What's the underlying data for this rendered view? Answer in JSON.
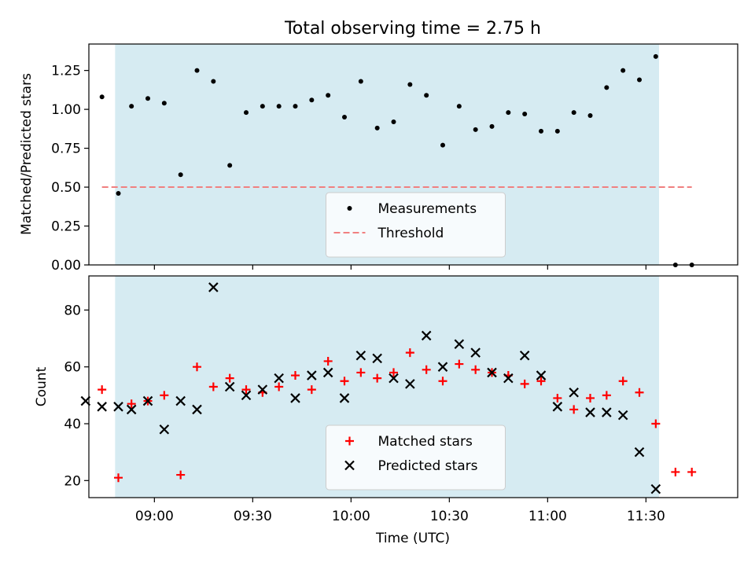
{
  "chart_data": [
    {
      "type": "scatter",
      "title": "Total observing time = 2.75 h",
      "xlabel": "",
      "ylabel": "Matched/Predicted stars",
      "xlim": [
        "08:40",
        "11:58"
      ],
      "ylim": [
        0,
        1.42
      ],
      "grid": false,
      "shaded_interval": [
        "08:48",
        "11:34"
      ],
      "x_ticks": [
        "09:00",
        "09:30",
        "10:00",
        "10:30",
        "11:00",
        "11:30"
      ],
      "y_ticks": [
        "0.00",
        "0.25",
        "0.50",
        "0.75",
        "1.00",
        "1.25"
      ],
      "legend_position": "bottom-center",
      "series": [
        {
          "name": "Measurements",
          "style": "dot",
          "color": "#000000",
          "x": [
            "08:44",
            "08:49",
            "08:53",
            "08:58",
            "09:03",
            "09:08",
            "09:13",
            "09:18",
            "09:23",
            "09:28",
            "09:33",
            "09:38",
            "09:43",
            "09:48",
            "09:53",
            "09:58",
            "10:03",
            "10:08",
            "10:13",
            "10:18",
            "10:23",
            "10:28",
            "10:33",
            "10:38",
            "10:43",
            "10:48",
            "10:53",
            "10:58",
            "11:03",
            "11:08",
            "11:13",
            "11:18",
            "11:23",
            "11:28",
            "11:33",
            "11:39",
            "11:44"
          ],
          "y": [
            1.08,
            0.46,
            1.02,
            1.07,
            1.04,
            0.58,
            1.25,
            1.18,
            0.64,
            0.98,
            1.02,
            1.02,
            1.02,
            1.06,
            1.09,
            0.95,
            1.18,
            0.88,
            0.92,
            1.16,
            1.09,
            0.77,
            1.02,
            0.87,
            0.89,
            0.98,
            0.97,
            0.86,
            0.86,
            0.98,
            0.96,
            1.14,
            1.25,
            1.19,
            1.34,
            0.0,
            0.0
          ]
        },
        {
          "name": "Threshold",
          "style": "dashed",
          "color": "#f08080",
          "x": [
            "08:44",
            "11:44"
          ],
          "y": [
            0.5,
            0.5
          ]
        }
      ]
    },
    {
      "type": "scatter",
      "title": "",
      "xlabel": "Time (UTC)",
      "ylabel": "Count",
      "xlim": [
        "08:40",
        "11:58"
      ],
      "ylim": [
        14,
        92
      ],
      "grid": false,
      "shaded_interval": [
        "08:48",
        "11:34"
      ],
      "x_ticks": [
        "09:00",
        "09:30",
        "10:00",
        "10:30",
        "11:00",
        "11:30"
      ],
      "y_ticks": [
        "20",
        "40",
        "60",
        "80"
      ],
      "legend_position": "bottom-center",
      "series": [
        {
          "name": "Matched stars",
          "marker": "plus",
          "color": "#ff0000",
          "x": [
            "08:44",
            "08:49",
            "08:53",
            "08:58",
            "09:03",
            "09:08",
            "09:13",
            "09:18",
            "09:23",
            "09:28",
            "09:33",
            "09:38",
            "09:43",
            "09:48",
            "09:53",
            "09:58",
            "10:03",
            "10:08",
            "10:13",
            "10:18",
            "10:23",
            "10:28",
            "10:33",
            "10:38",
            "10:43",
            "10:48",
            "10:53",
            "10:58",
            "11:03",
            "11:08",
            "11:13",
            "11:18",
            "11:23",
            "11:28",
            "11:33",
            "11:39",
            "11:44"
          ],
          "y": [
            52,
            21,
            47,
            48,
            50,
            22,
            60,
            53,
            56,
            52,
            51,
            53,
            57,
            52,
            62,
            55,
            58,
            56,
            58,
            65,
            59,
            55,
            61,
            59,
            58,
            57,
            54,
            55,
            49,
            45,
            49,
            50,
            55,
            51,
            40,
            23,
            23
          ]
        },
        {
          "name": "Predicted stars",
          "marker": "x",
          "color": "#000000",
          "x": [
            "08:39",
            "08:44",
            "08:49",
            "08:53",
            "08:58",
            "09:03",
            "09:08",
            "09:13",
            "09:18",
            "09:23",
            "09:28",
            "09:33",
            "09:38",
            "09:43",
            "09:48",
            "09:53",
            "09:58",
            "10:03",
            "10:08",
            "10:13",
            "10:18",
            "10:23",
            "10:28",
            "10:33",
            "10:38",
            "10:43",
            "10:48",
            "10:53",
            "10:58",
            "11:03",
            "11:08",
            "11:13",
            "11:18",
            "11:23",
            "11:28",
            "11:33"
          ],
          "y": [
            48,
            46,
            46,
            45,
            48,
            38,
            48,
            45,
            88,
            53,
            50,
            52,
            56,
            49,
            57,
            58,
            49,
            64,
            63,
            56,
            54,
            71,
            60,
            68,
            65,
            58,
            56,
            64,
            57,
            46,
            51,
            44,
            44,
            43,
            30,
            17
          ]
        }
      ]
    }
  ]
}
